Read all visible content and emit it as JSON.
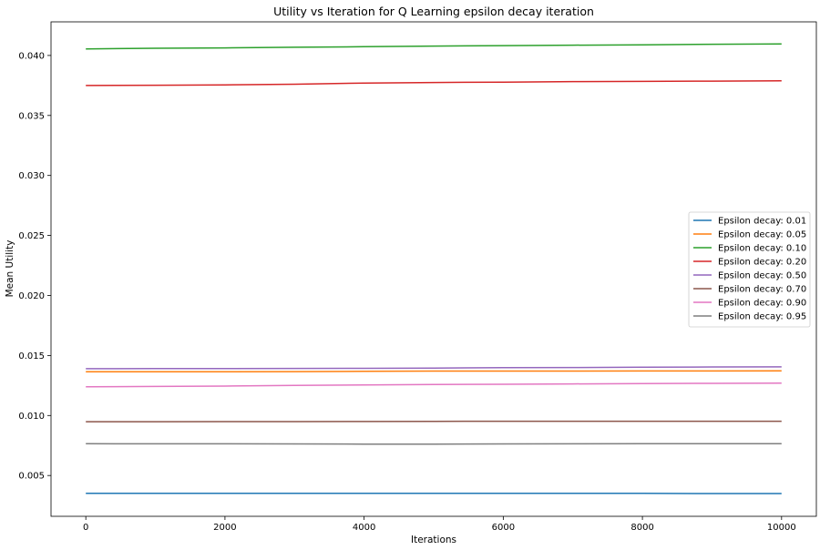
{
  "chart_data": {
    "type": "line",
    "title": "Utility vs Iteration for Q Learning epsilon decay iteration",
    "xlabel": "Iterations",
    "ylabel": "Mean Utility",
    "xlim": [
      -500,
      10500
    ],
    "ylim": [
      0.0016,
      0.0428
    ],
    "xticks": [
      0,
      2000,
      4000,
      6000,
      8000,
      10000
    ],
    "xtick_labels": [
      "0",
      "2000",
      "4000",
      "6000",
      "8000",
      "10000"
    ],
    "yticks": [
      0.005,
      0.01,
      0.015,
      0.02,
      0.025,
      0.03,
      0.035,
      0.04
    ],
    "ytick_labels": [
      "0.005",
      "0.010",
      "0.015",
      "0.020",
      "0.025",
      "0.030",
      "0.035",
      "0.040"
    ],
    "grid": false,
    "legend_position": "center-right",
    "x": [
      0,
      1000,
      2000,
      3000,
      4000,
      5000,
      6000,
      7000,
      8000,
      9000,
      10000
    ],
    "series": [
      {
        "name": "Epsilon decay: 0.01",
        "color": "#1f77b4",
        "values": [
          0.00352,
          0.00352,
          0.00351,
          0.00351,
          0.00351,
          0.00352,
          0.00352,
          0.00351,
          0.00351,
          0.0035,
          0.0035
        ]
      },
      {
        "name": "Epsilon decay: 0.05",
        "color": "#ff7f0e",
        "values": [
          0.01365,
          0.01365,
          0.01365,
          0.01366,
          0.01368,
          0.0137,
          0.0137,
          0.0137,
          0.01371,
          0.01371,
          0.01372
        ]
      },
      {
        "name": "Epsilon decay: 0.10",
        "color": "#2ca02c",
        "values": [
          0.04055,
          0.0406,
          0.04063,
          0.04068,
          0.04073,
          0.04078,
          0.04082,
          0.04086,
          0.04089,
          0.04093,
          0.04096
        ]
      },
      {
        "name": "Epsilon decay: 0.20",
        "color": "#d62728",
        "values": [
          0.0375,
          0.03752,
          0.03755,
          0.0376,
          0.0377,
          0.03775,
          0.03778,
          0.03782,
          0.03784,
          0.03786,
          0.03788
        ]
      },
      {
        "name": "Epsilon decay: 0.50",
        "color": "#9467bd",
        "values": [
          0.0139,
          0.01391,
          0.01391,
          0.01392,
          0.01393,
          0.01395,
          0.01398,
          0.014,
          0.01402,
          0.01404,
          0.01405
        ]
      },
      {
        "name": "Epsilon decay: 0.70",
        "color": "#8c564b",
        "values": [
          0.00948,
          0.00948,
          0.00949,
          0.00949,
          0.0095,
          0.00951,
          0.00952,
          0.00952,
          0.00952,
          0.00952,
          0.00952
        ]
      },
      {
        "name": "Epsilon decay: 0.90",
        "color": "#e377c2",
        "values": [
          0.0124,
          0.01242,
          0.01245,
          0.0125,
          0.01255,
          0.01258,
          0.0126,
          0.01263,
          0.01266,
          0.01268,
          0.0127
        ]
      },
      {
        "name": "Epsilon decay: 0.95",
        "color": "#7f7f7f",
        "values": [
          0.00765,
          0.00764,
          0.00764,
          0.00763,
          0.00762,
          0.00762,
          0.00763,
          0.00764,
          0.00765,
          0.00765,
          0.00765
        ]
      }
    ]
  }
}
